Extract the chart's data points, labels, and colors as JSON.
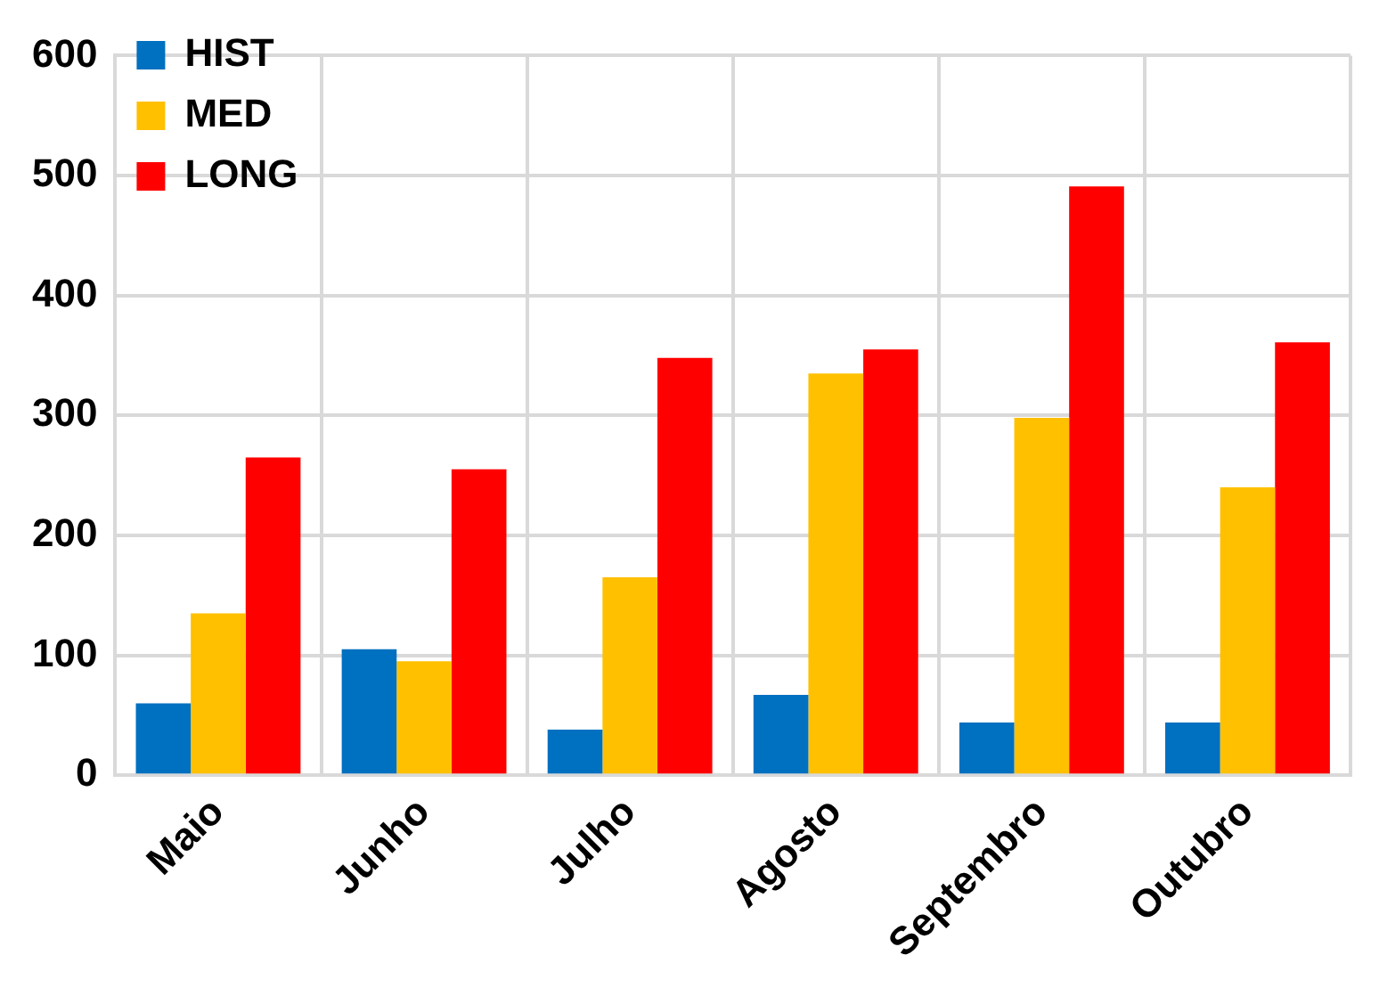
{
  "chart_data": {
    "type": "bar",
    "categories": [
      "Maio",
      "Junho",
      "Julho",
      "Agosto",
      "Septembro",
      "Outubro"
    ],
    "series": [
      {
        "name": "HIST",
        "color": "#0070c0",
        "values": [
          60,
          105,
          38,
          67,
          44,
          44
        ]
      },
      {
        "name": "MED",
        "color": "#ffc000",
        "values": [
          135,
          95,
          165,
          335,
          298,
          240
        ]
      },
      {
        "name": "LONG",
        "color": "#ff0000",
        "values": [
          265,
          255,
          348,
          355,
          491,
          361
        ]
      }
    ],
    "ylim": [
      0,
      600
    ],
    "yticks": [
      0,
      100,
      200,
      300,
      400,
      500,
      600
    ],
    "grid": true,
    "legend": "top left"
  }
}
